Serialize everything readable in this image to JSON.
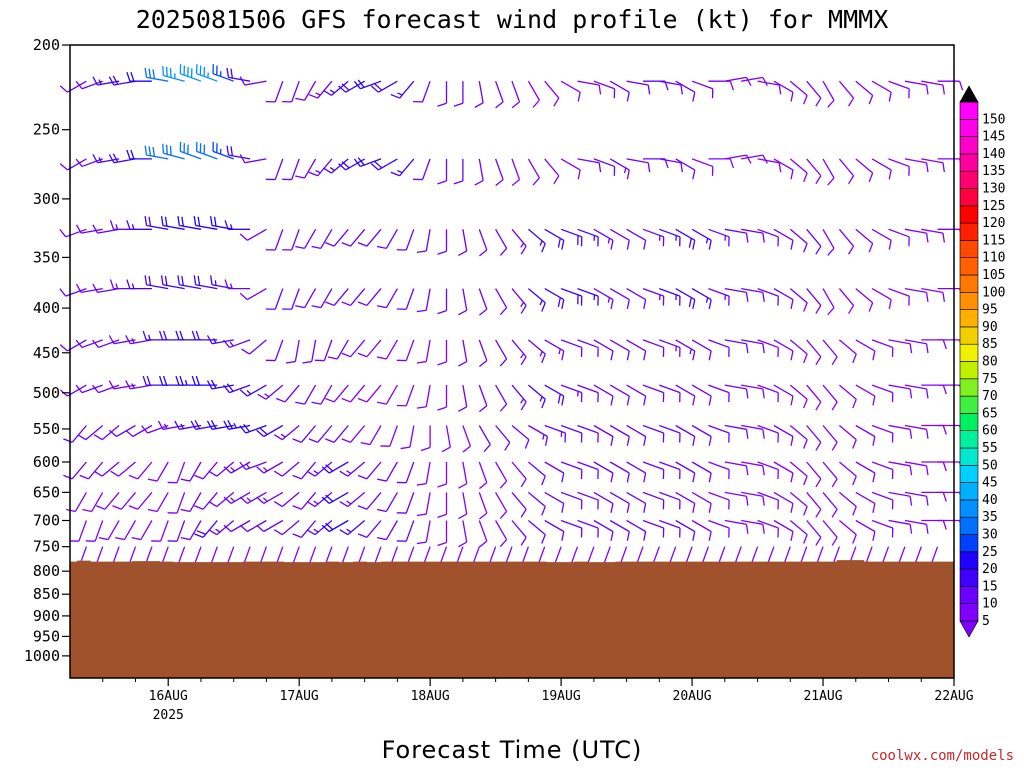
{
  "chart_data": {
    "type": "wind-barb-profile",
    "title": "2025081506 GFS forecast wind profile (kt) for MMMX",
    "xlabel": "Forecast Time (UTC)",
    "ylabel": "",
    "y_scale": "log",
    "y_reversed": true,
    "ylim": [
      200,
      1060
    ],
    "y_ticks": [
      "200",
      "250",
      "300",
      "350",
      "400",
      "450",
      "500",
      "550",
      "600",
      "650",
      "700",
      "750",
      "800",
      "850",
      "900",
      "950",
      "1000"
    ],
    "x_range_hours": [
      0,
      162
    ],
    "x_ticks": [
      {
        "hours": 18,
        "label": "16AUG",
        "sublabel": "2025"
      },
      {
        "hours": 42,
        "label": "17AUG"
      },
      {
        "hours": 66,
        "label": "18AUG"
      },
      {
        "hours": 90,
        "label": "19AUG"
      },
      {
        "hours": 114,
        "label": "20AUG"
      },
      {
        "hours": 138,
        "label": "21AUG"
      },
      {
        "hours": 162,
        "label": "22AUG"
      }
    ],
    "barb_interval_hours": 3,
    "barb_levels": [
      220,
      270,
      325,
      380,
      435,
      490,
      545,
      600,
      650,
      700,
      750
    ],
    "wind_speed_kt": [
      [
        10,
        10,
        12,
        15,
        18,
        22,
        30,
        35,
        38,
        35,
        25,
        18,
        10,
        10,
        10,
        12,
        14,
        15,
        18,
        20,
        18,
        15,
        12,
        10,
        10,
        10,
        10,
        8,
        8,
        8,
        8,
        8,
        10,
        10,
        10,
        10,
        10,
        10,
        10,
        8,
        8,
        8,
        8,
        8,
        8,
        8,
        8,
        8,
        8,
        8,
        8,
        8,
        8,
        8,
        8
      ],
      [
        10,
        10,
        12,
        15,
        18,
        22,
        30,
        30,
        32,
        30,
        25,
        18,
        10,
        10,
        10,
        12,
        14,
        15,
        18,
        20,
        18,
        15,
        12,
        10,
        10,
        10,
        10,
        8,
        8,
        8,
        8,
        10,
        12,
        14,
        12,
        10,
        10,
        10,
        8,
        8,
        8,
        8,
        8,
        8,
        8,
        8,
        8,
        8,
        8,
        8,
        8,
        8,
        8,
        8,
        8
      ],
      [
        10,
        10,
        12,
        12,
        14,
        16,
        18,
        20,
        22,
        22,
        20,
        16,
        12,
        10,
        10,
        10,
        10,
        10,
        10,
        10,
        10,
        10,
        10,
        10,
        10,
        10,
        12,
        14,
        16,
        18,
        18,
        16,
        14,
        12,
        12,
        14,
        16,
        18,
        16,
        14,
        12,
        10,
        10,
        10,
        10,
        10,
        8,
        8,
        8,
        8,
        8,
        8,
        8,
        8,
        8
      ],
      [
        10,
        10,
        12,
        12,
        14,
        16,
        18,
        18,
        18,
        18,
        16,
        14,
        12,
        10,
        10,
        10,
        10,
        10,
        10,
        10,
        10,
        10,
        10,
        10,
        10,
        10,
        12,
        14,
        16,
        18,
        18,
        16,
        14,
        12,
        12,
        14,
        16,
        18,
        16,
        14,
        12,
        10,
        10,
        10,
        10,
        10,
        8,
        8,
        8,
        8,
        8,
        8,
        8,
        8,
        8
      ],
      [
        10,
        10,
        10,
        12,
        12,
        14,
        16,
        18,
        20,
        18,
        16,
        14,
        12,
        10,
        10,
        10,
        10,
        10,
        8,
        8,
        8,
        8,
        8,
        8,
        10,
        10,
        12,
        14,
        14,
        14,
        12,
        12,
        12,
        12,
        12,
        12,
        14,
        14,
        12,
        10,
        10,
        10,
        8,
        8,
        8,
        8,
        8,
        8,
        8,
        8,
        8,
        8,
        8,
        8,
        8
      ],
      [
        10,
        10,
        10,
        12,
        12,
        14,
        18,
        22,
        24,
        22,
        20,
        18,
        16,
        14,
        12,
        10,
        10,
        8,
        8,
        8,
        8,
        8,
        8,
        8,
        10,
        10,
        12,
        14,
        16,
        18,
        14,
        12,
        12,
        12,
        12,
        12,
        12,
        12,
        10,
        10,
        10,
        8,
        8,
        8,
        8,
        8,
        8,
        8,
        8,
        8,
        8,
        8,
        8,
        8,
        8
      ],
      [
        10,
        10,
        10,
        10,
        10,
        10,
        12,
        14,
        16,
        18,
        22,
        24,
        22,
        18,
        14,
        12,
        10,
        10,
        8,
        8,
        8,
        8,
        8,
        8,
        8,
        10,
        10,
        12,
        14,
        14,
        12,
        12,
        12,
        12,
        12,
        12,
        12,
        12,
        10,
        10,
        10,
        8,
        8,
        8,
        8,
        8,
        8,
        8,
        8,
        8,
        8,
        8,
        8,
        8,
        8
      ],
      [
        10,
        10,
        10,
        10,
        10,
        8,
        8,
        8,
        10,
        10,
        12,
        14,
        14,
        14,
        12,
        12,
        14,
        18,
        14,
        12,
        10,
        10,
        8,
        8,
        8,
        8,
        8,
        8,
        10,
        10,
        12,
        12,
        12,
        12,
        12,
        12,
        10,
        10,
        10,
        8,
        8,
        8,
        8,
        8,
        8,
        8,
        8,
        8,
        8,
        8,
        8,
        8,
        8,
        8,
        8
      ],
      [
        8,
        8,
        8,
        8,
        8,
        8,
        8,
        8,
        10,
        12,
        12,
        14,
        14,
        14,
        12,
        12,
        14,
        20,
        14,
        12,
        10,
        10,
        8,
        8,
        8,
        8,
        8,
        10,
        10,
        10,
        10,
        10,
        10,
        10,
        10,
        10,
        10,
        10,
        8,
        8,
        8,
        8,
        8,
        8,
        8,
        8,
        8,
        8,
        8,
        8,
        8,
        8,
        8,
        8,
        8
      ],
      [
        8,
        8,
        8,
        8,
        8,
        8,
        8,
        10,
        12,
        18,
        14,
        12,
        10,
        10,
        10,
        12,
        14,
        22,
        16,
        12,
        10,
        10,
        8,
        8,
        8,
        8,
        8,
        10,
        10,
        10,
        10,
        10,
        10,
        10,
        10,
        10,
        10,
        10,
        8,
        8,
        8,
        8,
        8,
        8,
        8,
        8,
        8,
        8,
        8,
        8,
        8,
        8,
        8,
        8,
        8
      ],
      [
        8,
        8,
        8,
        8,
        8,
        8,
        8,
        8,
        8,
        8,
        8,
        8,
        8,
        8,
        8,
        8,
        8,
        8,
        8,
        8,
        8,
        8,
        8,
        8,
        8,
        8,
        8,
        8,
        8,
        8,
        8,
        8,
        8,
        8,
        8,
        8,
        8,
        8,
        8,
        8,
        8,
        8,
        8,
        8,
        8,
        8,
        8,
        8,
        8,
        8,
        8,
        8,
        8,
        8,
        8
      ]
    ],
    "wind_dir_deg": [
      [
        240,
        240,
        250,
        260,
        260,
        270,
        280,
        285,
        290,
        290,
        290,
        280,
        260,
        200,
        200,
        210,
        220,
        230,
        240,
        250,
        240,
        220,
        200,
        180,
        180,
        170,
        160,
        160,
        150,
        140,
        120,
        100,
        110,
        120,
        100,
        90,
        100,
        120,
        110,
        90,
        80,
        80,
        100,
        120,
        130,
        140,
        150,
        140,
        130,
        120,
        110,
        100,
        100,
        90,
        90
      ],
      [
        240,
        240,
        250,
        260,
        260,
        270,
        280,
        285,
        290,
        290,
        290,
        280,
        260,
        200,
        200,
        210,
        220,
        230,
        240,
        250,
        240,
        220,
        200,
        180,
        180,
        170,
        160,
        160,
        150,
        140,
        120,
        100,
        110,
        120,
        100,
        90,
        100,
        120,
        110,
        90,
        80,
        80,
        100,
        120,
        130,
        140,
        150,
        140,
        130,
        120,
        110,
        100,
        100,
        90,
        90
      ],
      [
        250,
        250,
        260,
        260,
        270,
        270,
        280,
        280,
        280,
        280,
        280,
        270,
        240,
        200,
        200,
        210,
        210,
        220,
        220,
        220,
        210,
        200,
        190,
        180,
        170,
        160,
        150,
        140,
        130,
        120,
        110,
        110,
        120,
        120,
        120,
        110,
        110,
        120,
        120,
        110,
        100,
        100,
        110,
        120,
        130,
        140,
        150,
        140,
        130,
        120,
        110,
        100,
        100,
        90,
        90
      ],
      [
        250,
        250,
        260,
        260,
        270,
        270,
        280,
        280,
        280,
        280,
        280,
        270,
        240,
        200,
        200,
        210,
        210,
        220,
        220,
        220,
        210,
        200,
        190,
        180,
        170,
        160,
        150,
        140,
        130,
        120,
        110,
        110,
        120,
        120,
        120,
        110,
        110,
        120,
        120,
        110,
        100,
        100,
        110,
        120,
        130,
        140,
        150,
        140,
        130,
        120,
        110,
        100,
        100,
        90,
        90
      ],
      [
        240,
        240,
        250,
        250,
        260,
        260,
        270,
        270,
        270,
        270,
        260,
        250,
        230,
        200,
        190,
        190,
        200,
        210,
        220,
        220,
        210,
        200,
        190,
        180,
        170,
        160,
        150,
        140,
        130,
        120,
        110,
        110,
        120,
        120,
        120,
        110,
        110,
        120,
        120,
        110,
        100,
        100,
        110,
        120,
        130,
        140,
        140,
        130,
        120,
        110,
        100,
        100,
        90,
        90,
        90
      ],
      [
        240,
        240,
        250,
        250,
        260,
        260,
        270,
        270,
        270,
        270,
        260,
        250,
        240,
        230,
        220,
        210,
        210,
        220,
        220,
        220,
        210,
        200,
        190,
        180,
        170,
        160,
        150,
        140,
        130,
        120,
        110,
        110,
        120,
        120,
        120,
        110,
        110,
        120,
        120,
        110,
        100,
        100,
        110,
        120,
        130,
        140,
        140,
        130,
        120,
        110,
        100,
        100,
        90,
        90,
        90
      ],
      [
        220,
        220,
        230,
        230,
        240,
        240,
        250,
        260,
        260,
        260,
        260,
        260,
        250,
        240,
        230,
        220,
        220,
        220,
        220,
        210,
        200,
        190,
        180,
        170,
        160,
        150,
        140,
        130,
        120,
        110,
        110,
        110,
        120,
        120,
        120,
        110,
        110,
        120,
        120,
        110,
        100,
        100,
        110,
        120,
        130,
        140,
        140,
        130,
        120,
        110,
        100,
        100,
        90,
        90,
        90
      ],
      [
        220,
        220,
        220,
        230,
        230,
        220,
        210,
        200,
        210,
        220,
        230,
        240,
        250,
        240,
        230,
        220,
        230,
        240,
        230,
        220,
        210,
        200,
        190,
        180,
        170,
        160,
        150,
        140,
        130,
        120,
        110,
        110,
        120,
        120,
        120,
        110,
        110,
        120,
        120,
        110,
        100,
        100,
        110,
        120,
        130,
        140,
        140,
        130,
        120,
        110,
        100,
        100,
        90,
        90,
        90
      ],
      [
        210,
        210,
        210,
        220,
        220,
        220,
        210,
        200,
        210,
        220,
        230,
        240,
        240,
        240,
        230,
        220,
        230,
        240,
        230,
        220,
        210,
        200,
        190,
        180,
        170,
        160,
        150,
        140,
        130,
        120,
        110,
        110,
        120,
        120,
        120,
        110,
        110,
        120,
        120,
        110,
        100,
        100,
        110,
        120,
        130,
        140,
        140,
        130,
        120,
        110,
        100,
        100,
        90,
        90,
        90
      ],
      [
        200,
        200,
        200,
        210,
        210,
        210,
        200,
        200,
        210,
        220,
        230,
        240,
        240,
        240,
        230,
        220,
        230,
        240,
        230,
        220,
        210,
        200,
        190,
        180,
        170,
        160,
        150,
        140,
        130,
        120,
        110,
        110,
        120,
        120,
        120,
        110,
        110,
        120,
        120,
        110,
        100,
        100,
        110,
        120,
        130,
        140,
        140,
        130,
        120,
        110,
        100,
        100,
        90,
        90,
        90
      ],
      [
        200,
        200,
        200,
        200,
        200,
        200,
        200,
        200,
        200,
        200,
        200,
        200,
        200,
        200,
        200,
        200,
        200,
        200,
        200,
        200,
        200,
        200,
        200,
        200,
        200,
        200,
        200,
        200,
        200,
        200,
        200,
        200,
        200,
        200,
        200,
        200,
        200,
        200,
        200,
        200,
        200,
        200,
        200,
        200,
        200,
        200,
        200,
        200,
        200,
        200,
        200,
        200,
        200,
        200,
        200
      ]
    ],
    "surface_pressure_hpa": [
      780,
      778,
      780,
      780,
      780,
      779,
      779,
      780,
      781,
      781,
      781,
      781,
      781,
      780,
      780,
      780,
      781,
      781,
      781,
      780,
      781,
      780,
      781,
      780,
      780,
      780,
      780,
      780,
      780,
      780,
      780,
      780,
      780,
      780,
      780,
      781,
      781,
      780,
      781,
      781,
      780,
      780,
      780,
      780,
      780,
      780,
      780,
      780,
      780,
      780,
      780,
      780,
      780,
      780,
      780,
      780,
      777,
      777,
      780,
      780,
      780,
      780,
      780,
      780,
      780
    ],
    "terrain_color": "#a0522d",
    "colorbar": {
      "title": "",
      "labels": [
        "5",
        "10",
        "15",
        "20",
        "25",
        "30",
        "35",
        "40",
        "45",
        "50",
        "55",
        "60",
        "65",
        "70",
        "75",
        "80",
        "85",
        "90",
        "95",
        "100",
        "105",
        "110",
        "115",
        "120",
        "125",
        "130",
        "135",
        "140",
        "145",
        "150"
      ],
      "colors": [
        "#8000ff",
        "#6a00ff",
        "#4000ff",
        "#2000ff",
        "#0040ff",
        "#0070ff",
        "#0090ff",
        "#00b0ff",
        "#00d0ff",
        "#00e8d0",
        "#00f0a0",
        "#00f060",
        "#40f040",
        "#80f020",
        "#c0f000",
        "#f0f000",
        "#f0d000",
        "#ffb000",
        "#ff9000",
        "#ff7800",
        "#ff6000",
        "#ff4800",
        "#ff2000",
        "#ff0000",
        "#ff0040",
        "#ff0070",
        "#ff00a0",
        "#ff00c8",
        "#ff00e8",
        "#ff00ff"
      ],
      "low_cap_color": "#8000ff",
      "high_cap_color": "#000000"
    }
  },
  "credit": "coolwx.com/models",
  "credit_color": "#c82828"
}
